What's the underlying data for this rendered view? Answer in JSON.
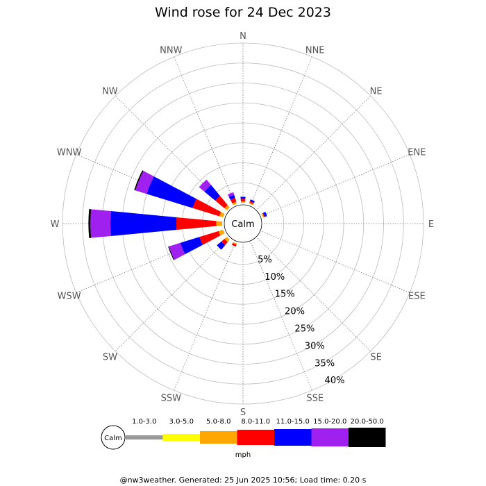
{
  "chart_data": {
    "type": "wind-rose",
    "title": "Wind rose for 24 Dec 2023",
    "center_label": "Calm",
    "directions": [
      "N",
      "NNE",
      "NE",
      "ENE",
      "E",
      "ESE",
      "SE",
      "SSE",
      "S",
      "SSW",
      "SW",
      "WSW",
      "W",
      "WNW",
      "NW",
      "NNW"
    ],
    "ring_labels": [
      "5%",
      "10%",
      "15%",
      "20%",
      "25%",
      "30%",
      "35%",
      "40%"
    ],
    "ring_max_percent": 40,
    "speed_bins": [
      {
        "label": "1.0-3.0",
        "color": "#999999"
      },
      {
        "label": "3.0-5.0",
        "color": "#ffff00"
      },
      {
        "label": "5.0-8.0",
        "color": "#ffa500"
      },
      {
        "label": "8.0-11.0",
        "color": "#ff0000"
      },
      {
        "label": "11.0-15.0",
        "color": "#0000ff"
      },
      {
        "label": "15.0-20.0",
        "color": "#a020f0"
      },
      {
        "label": "20.0-50.0",
        "color": "#000000"
      }
    ],
    "series": [
      {
        "direction": "N",
        "percents": [
          0,
          0,
          0.3,
          0.7,
          0.5,
          0,
          0
        ]
      },
      {
        "direction": "NNE",
        "percents": [
          0,
          0,
          0.3,
          0.4,
          0.4,
          0,
          0
        ]
      },
      {
        "direction": "ENE",
        "percents": [
          0,
          0,
          0.3,
          0.2,
          0.6,
          0,
          0
        ]
      },
      {
        "direction": "NNW",
        "percents": [
          0,
          0,
          0.5,
          1.0,
          0.8,
          0.7,
          0
        ]
      },
      {
        "direction": "NW",
        "percents": [
          0,
          0,
          0.8,
          3.0,
          3.5,
          1.8,
          0
        ]
      },
      {
        "direction": "WNW",
        "percents": [
          0,
          0,
          1.0,
          7.0,
          12.0,
          3.0,
          0.3
        ]
      },
      {
        "direction": "W",
        "percents": [
          0,
          0,
          1.5,
          10.0,
          16.5,
          5.0,
          0.5
        ]
      },
      {
        "direction": "WSW",
        "percents": [
          0,
          0,
          1.2,
          5.0,
          5.0,
          3.0,
          0.2
        ]
      },
      {
        "direction": "SW",
        "percents": [
          0,
          0,
          0.8,
          1.0,
          1.5,
          0,
          0
        ]
      },
      {
        "direction": "SSW",
        "percents": [
          0,
          0,
          0.3,
          0.5,
          0,
          0,
          0
        ]
      }
    ],
    "legend_unit": "mph"
  },
  "footer": "@nw3weather. Generated: 25 Jun 2025 10:56; Load time: 0.20 s"
}
